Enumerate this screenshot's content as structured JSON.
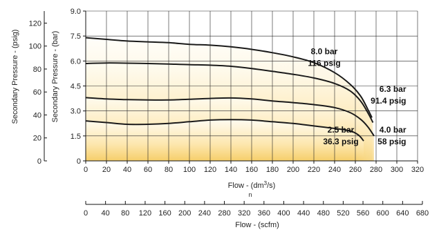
{
  "chart_data": {
    "type": "line",
    "xlabel": "Flow - (dm³/s)",
    "xlabel_sub": "n",
    "ylabel_left_outer": "Secondary Pressure - (psig)",
    "ylabel_left_inner": "Secondary Pressure - (bar)",
    "x2label": "Flow - (scfm)",
    "xlim": [
      0,
      320
    ],
    "ylim": [
      0,
      9.0
    ],
    "x_ticks": [
      0,
      20,
      40,
      60,
      80,
      100,
      120,
      140,
      160,
      180,
      200,
      220,
      240,
      260,
      280,
      300,
      320
    ],
    "y_ticks_bar": [
      {
        "value": 0,
        "label": "0"
      },
      {
        "value": 1.5,
        "label": "1.5"
      },
      {
        "value": 3.0,
        "label": "3.0"
      },
      {
        "value": 4.5,
        "label": "4.5"
      },
      {
        "value": 6.0,
        "label": "6.0"
      },
      {
        "value": 7.5,
        "label": "7.5"
      },
      {
        "value": 9.0,
        "label": "9.0"
      }
    ],
    "y_ticks_psig": [
      0,
      20,
      40,
      60,
      80,
      100,
      120
    ],
    "x2_ticks": [
      0,
      40,
      80,
      120,
      160,
      200,
      240,
      280,
      320,
      360,
      400,
      440,
      480,
      520,
      560,
      600,
      640,
      680
    ],
    "x2lim": [
      0,
      680
    ],
    "grid": true,
    "colors": {
      "line": "#1a1a1a",
      "fill_light": "#fffaf0",
      "fill_dark": "#f6cf6a",
      "grid": "#222222"
    },
    "series": [
      {
        "label": "8.0 bar 116 psig",
        "x": [
          0,
          20,
          40,
          60,
          80,
          100,
          120,
          140,
          160,
          180,
          200,
          220,
          240,
          255,
          265,
          272,
          276
        ],
        "y": [
          7.4,
          7.3,
          7.2,
          7.15,
          7.1,
          7.0,
          6.95,
          6.85,
          6.7,
          6.5,
          6.25,
          5.9,
          5.3,
          4.6,
          3.9,
          3.1,
          2.6
        ]
      },
      {
        "label": "6.3 bar 91.4 psig",
        "x": [
          0,
          20,
          40,
          60,
          80,
          100,
          120,
          140,
          160,
          180,
          200,
          220,
          240,
          255,
          265,
          272,
          277
        ],
        "y": [
          5.85,
          5.88,
          5.87,
          5.85,
          5.82,
          5.78,
          5.75,
          5.68,
          5.55,
          5.38,
          5.2,
          4.98,
          4.65,
          4.2,
          3.6,
          2.9,
          2.3
        ]
      },
      {
        "label": "4.0 bar 58 psig",
        "x": [
          0,
          20,
          40,
          60,
          80,
          100,
          120,
          140,
          160,
          180,
          200,
          220,
          240,
          255,
          265,
          272,
          278
        ],
        "y": [
          3.8,
          3.72,
          3.68,
          3.66,
          3.66,
          3.7,
          3.75,
          3.78,
          3.72,
          3.6,
          3.5,
          3.38,
          3.2,
          2.9,
          2.5,
          2.05,
          1.5
        ]
      },
      {
        "label": "2.5 bar 36.3 psig",
        "x": [
          0,
          20,
          40,
          60,
          80,
          100,
          120,
          140,
          160,
          180,
          200,
          220,
          240,
          255,
          263,
          268
        ],
        "y": [
          2.4,
          2.3,
          2.2,
          2.2,
          2.25,
          2.35,
          2.45,
          2.48,
          2.45,
          2.35,
          2.25,
          2.1,
          1.95,
          1.8,
          1.55,
          1.2
        ]
      }
    ],
    "annotations": [
      {
        "line1": "8.0 bar",
        "line2": "116 psig"
      },
      {
        "line1": "6.3 bar",
        "line2": "91.4 psig"
      },
      {
        "line1": "4.0 bar",
        "line2": "58 psig"
      },
      {
        "line1": "2.5 bar",
        "line2": "36.3 psig"
      }
    ]
  }
}
